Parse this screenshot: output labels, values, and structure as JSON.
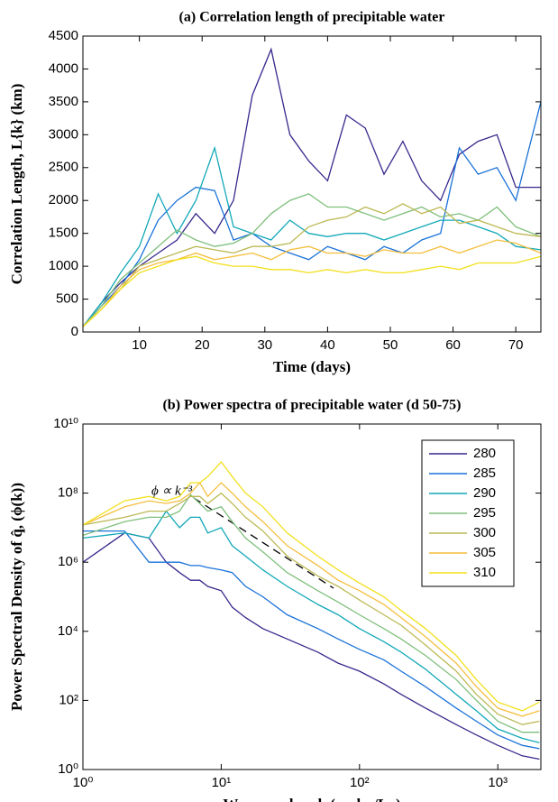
{
  "chart_data": [
    {
      "type": "line",
      "title": "(a) Correlation length of precipitable water",
      "xlabel": "Time (days)",
      "ylabel": "Correlation Length, L{k} (km)",
      "x": [
        1,
        4,
        7,
        10,
        13,
        16,
        19,
        22,
        25,
        28,
        31,
        34,
        37,
        40,
        43,
        46,
        49,
        52,
        55,
        58,
        61,
        64,
        67,
        70,
        74
      ],
      "xlim": [
        1,
        74
      ],
      "ylim": [
        0,
        4500
      ],
      "xticks": [
        10,
        20,
        30,
        40,
        50,
        60,
        70
      ],
      "yticks": [
        0,
        500,
        1000,
        1500,
        2000,
        2500,
        3000,
        3500,
        4000,
        4500
      ],
      "series": [
        {
          "name": "280",
          "color": "#36288c",
          "values": [
            80,
            450,
            750,
            1000,
            1200,
            1400,
            1800,
            1500,
            2000,
            3600,
            4300,
            3000,
            2600,
            2300,
            3300,
            3100,
            2400,
            2900,
            2300,
            2000,
            2700,
            2900,
            3000,
            2200,
            2200
          ]
        },
        {
          "name": "285",
          "color": "#1a72d8",
          "values": [
            80,
            400,
            700,
            1100,
            1700,
            2000,
            2200,
            2150,
            1400,
            1500,
            1300,
            1200,
            1100,
            1300,
            1200,
            1100,
            1300,
            1200,
            1400,
            1500,
            2800,
            2400,
            2500,
            2000,
            3500
          ]
        },
        {
          "name": "290",
          "color": "#12a8b8",
          "values": [
            80,
            450,
            900,
            1300,
            2100,
            1500,
            2000,
            2800,
            1600,
            1500,
            1400,
            1700,
            1500,
            1450,
            1500,
            1500,
            1400,
            1500,
            1600,
            1700,
            1700,
            1600,
            1500,
            1300,
            1250
          ]
        },
        {
          "name": "295",
          "color": "#7fbf7b",
          "values": [
            80,
            400,
            800,
            1050,
            1300,
            1550,
            1400,
            1300,
            1350,
            1500,
            1800,
            2000,
            2100,
            1900,
            1900,
            1800,
            1700,
            1800,
            1900,
            1750,
            1800,
            1700,
            1900,
            1600,
            1450
          ]
        },
        {
          "name": "300",
          "color": "#bcb955",
          "values": [
            80,
            350,
            650,
            1000,
            1100,
            1200,
            1300,
            1250,
            1200,
            1300,
            1300,
            1350,
            1600,
            1700,
            1750,
            1900,
            1800,
            1950,
            1800,
            1900,
            1650,
            1700,
            1600,
            1500,
            1450
          ]
        },
        {
          "name": "305",
          "color": "#f5be3e",
          "values": [
            80,
            350,
            700,
            950,
            1050,
            1100,
            1200,
            1100,
            1150,
            1200,
            1100,
            1250,
            1300,
            1200,
            1200,
            1150,
            1250,
            1200,
            1200,
            1300,
            1200,
            1300,
            1400,
            1350,
            1200
          ]
        },
        {
          "name": "310",
          "color": "#f2e01d",
          "values": [
            80,
            350,
            650,
            900,
            1000,
            1100,
            1150,
            1050,
            1000,
            1000,
            950,
            950,
            900,
            950,
            900,
            950,
            900,
            900,
            950,
            1000,
            950,
            1050,
            1050,
            1050,
            1150
          ]
        }
      ]
    },
    {
      "type": "line",
      "title": "(b) Power spectra of precipitable water (d 50-75)",
      "xlabel": "Wavenumber, k (cycles/Lx)",
      "ylabel": "Power Spectral Density of q̂, (ϕ(k))",
      "annotation": "ϕ ∝ k⁻³",
      "xscale": "log",
      "yscale": "log",
      "legend": "northeast",
      "x": [
        1,
        2,
        3,
        4,
        5,
        6,
        7,
        8,
        10,
        12,
        15,
        20,
        30,
        50,
        70,
        100,
        150,
        200,
        300,
        500,
        700,
        1000,
        1500,
        2000
      ],
      "xlim": [
        1,
        2048
      ],
      "ylim": [
        1,
        10000000000
      ],
      "xticks": [
        {
          "value": 1,
          "label": "10⁰"
        },
        {
          "value": 10,
          "label": "10¹"
        },
        {
          "value": 100,
          "label": "10²"
        },
        {
          "value": 1000,
          "label": "10³"
        }
      ],
      "yticks": [
        {
          "value": 1,
          "label": "10⁰"
        },
        {
          "value": 100,
          "label": "10²"
        },
        {
          "value": 10000,
          "label": "10⁴"
        },
        {
          "value": 1000000,
          "label": "10⁶"
        },
        {
          "value": 100000000,
          "label": "10⁸"
        },
        {
          "value": 10000000000,
          "label": "10¹⁰"
        }
      ],
      "series": [
        {
          "name": "280",
          "color": "#36288c",
          "values": [
            1000000.0,
            7000000.0,
            5000000.0,
            1000000.0,
            500000.0,
            300000.0,
            300000.0,
            200000.0,
            150000.0,
            50000.0,
            25000.0,
            12000.0,
            6000,
            2500,
            1200,
            700,
            300,
            150,
            60,
            20,
            10,
            5,
            2.5,
            2
          ]
        },
        {
          "name": "285",
          "color": "#1a72d8",
          "values": [
            8000000.0,
            8000000.0,
            1000000.0,
            1000000.0,
            1000000.0,
            800000.0,
            800000.0,
            700000.0,
            600000.0,
            500000.0,
            200000.0,
            100000.0,
            30000.0,
            12000.0,
            6000,
            3000,
            1500,
            700,
            250,
            60,
            25,
            10,
            5,
            4
          ]
        },
        {
          "name": "290",
          "color": "#12a8b8",
          "values": [
            5000000.0,
            7000000.0,
            5000000.0,
            30000000.0,
            10000000.0,
            20000000.0,
            20000000.0,
            7000000.0,
            10000000.0,
            3000000.0,
            1500000.0,
            600000.0,
            200000.0,
            60000.0,
            30000.0,
            12000.0,
            5000,
            2500,
            800,
            150,
            50,
            15,
            8,
            6
          ]
        },
        {
          "name": "295",
          "color": "#7fbf7b",
          "values": [
            6000000.0,
            15000000.0,
            20000000.0,
            20000000.0,
            30000000.0,
            90000000.0,
            50000000.0,
            30000000.0,
            40000000.0,
            15000000.0,
            5000000.0,
            2000000.0,
            500000.0,
            150000.0,
            70000.0,
            30000.0,
            12000.0,
            6000,
            2000,
            400,
            100,
            25,
            12,
            12
          ]
        },
        {
          "name": "300",
          "color": "#bcb955",
          "values": [
            12000000.0,
            20000000.0,
            30000000.0,
            30000000.0,
            50000000.0,
            80000000.0,
            80000000.0,
            50000000.0,
            100000000.0,
            50000000.0,
            20000000.0,
            8000000.0,
            1500000.0,
            400000.0,
            200000.0,
            80000.0,
            30000.0,
            15000.0,
            4000,
            700,
            150,
            40,
            20,
            25
          ]
        },
        {
          "name": "305",
          "color": "#f5be3e",
          "values": [
            12000000.0,
            40000000.0,
            60000000.0,
            50000000.0,
            60000000.0,
            100000000.0,
            200000000.0,
            80000000.0,
            200000000.0,
            100000000.0,
            40000000.0,
            15000000.0,
            3000000.0,
            800000.0,
            300000.0,
            150000.0,
            60000.0,
            25000.0,
            7000,
            1200,
            250,
            60,
            35,
            50
          ]
        },
        {
          "name": "310",
          "color": "#f2e01d",
          "values": [
            12000000.0,
            60000000.0,
            80000000.0,
            60000000.0,
            80000000.0,
            200000000.0,
            200000000.0,
            300000000.0,
            800000000.0,
            300000000.0,
            100000000.0,
            40000000.0,
            7000000.0,
            1500000.0,
            600000.0,
            250000.0,
            100000.0,
            40000.0,
            12000.0,
            2000,
            400,
            90,
            50,
            90
          ]
        }
      ]
    }
  ]
}
